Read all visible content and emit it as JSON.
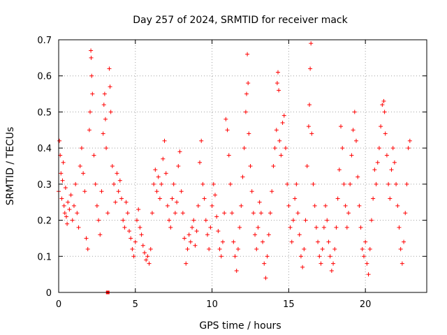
{
  "chart_data": {
    "type": "scatter",
    "title": "Day 257 of 2024, SRMTID for receiver mack",
    "xlabel": "GPS time / hours",
    "ylabel": "SRMTID / TECUs",
    "xlim": [
      0,
      24
    ],
    "ylim": [
      0,
      0.7
    ],
    "xticks": [
      0,
      5,
      10,
      15,
      20
    ],
    "xtick_labels": [
      "0",
      "5",
      "10",
      "15",
      "20"
    ],
    "yticks": [
      0,
      0.1,
      0.2,
      0.3,
      0.4,
      0.5,
      0.6,
      0.7
    ],
    "ytick_labels": [
      "0",
      "0.1",
      "0.2",
      "0.3",
      "0.4",
      "0.5",
      "0.6",
      "0.7"
    ],
    "grid": true,
    "marker": "+",
    "series": [
      {
        "name": "SRMTID",
        "color": "#ff0000",
        "points": [
          [
            0.0,
            0.28
          ],
          [
            0.05,
            0.42
          ],
          [
            0.1,
            0.38
          ],
          [
            0.15,
            0.33
          ],
          [
            0.2,
            0.26
          ],
          [
            0.25,
            0.31
          ],
          [
            0.3,
            0.36
          ],
          [
            0.35,
            0.24
          ],
          [
            0.4,
            0.22
          ],
          [
            0.45,
            0.29
          ],
          [
            0.5,
            0.21
          ],
          [
            0.55,
            0.19
          ],
          [
            0.6,
            0.25
          ],
          [
            0.7,
            0.23
          ],
          [
            0.8,
            0.27
          ],
          [
            0.9,
            0.2
          ],
          [
            1.0,
            0.24
          ],
          [
            1.1,
            0.3
          ],
          [
            1.2,
            0.22
          ],
          [
            1.3,
            0.18
          ],
          [
            1.4,
            0.35
          ],
          [
            1.5,
            0.4
          ],
          [
            1.6,
            0.33
          ],
          [
            1.7,
            0.28
          ],
          [
            1.8,
            0.15
          ],
          [
            1.9,
            0.12
          ],
          [
            2.0,
            0.45
          ],
          [
            2.05,
            0.5
          ],
          [
            2.1,
            0.67
          ],
          [
            2.12,
            0.65
          ],
          [
            2.15,
            0.6
          ],
          [
            2.2,
            0.55
          ],
          [
            2.3,
            0.38
          ],
          [
            2.4,
            0.3
          ],
          [
            2.5,
            0.24
          ],
          [
            2.6,
            0.2
          ],
          [
            2.7,
            0.16
          ],
          [
            2.8,
            0.28
          ],
          [
            2.9,
            0.44
          ],
          [
            2.95,
            0.52
          ],
          [
            3.0,
            0.55
          ],
          [
            3.05,
            0.48
          ],
          [
            3.1,
            0.4
          ],
          [
            3.2,
            0.22
          ],
          [
            3.3,
            0.62
          ],
          [
            3.35,
            0.57
          ],
          [
            3.4,
            0.5
          ],
          [
            3.5,
            0.35
          ],
          [
            3.6,
            0.3
          ],
          [
            3.7,
            0.25
          ],
          [
            3.8,
            0.33
          ],
          [
            3.9,
            0.28
          ],
          [
            4.0,
            0.31
          ],
          [
            4.1,
            0.26
          ],
          [
            4.2,
            0.2
          ],
          [
            4.3,
            0.18
          ],
          [
            4.4,
            0.25
          ],
          [
            4.5,
            0.22
          ],
          [
            4.6,
            0.17
          ],
          [
            4.7,
            0.15
          ],
          [
            4.8,
            0.12
          ],
          [
            4.9,
            0.1
          ],
          [
            5.0,
            0.14
          ],
          [
            5.1,
            0.2
          ],
          [
            5.2,
            0.23
          ],
          [
            5.3,
            0.18
          ],
          [
            5.4,
            0.16
          ],
          [
            5.5,
            0.13
          ],
          [
            5.6,
            0.11
          ],
          [
            5.7,
            0.09
          ],
          [
            5.8,
            0.1
          ],
          [
            5.9,
            0.08
          ],
          [
            6.0,
            0.12
          ],
          [
            6.1,
            0.22
          ],
          [
            6.2,
            0.3
          ],
          [
            6.3,
            0.34
          ],
          [
            6.4,
            0.28
          ],
          [
            6.5,
            0.32
          ],
          [
            6.6,
            0.26
          ],
          [
            6.7,
            0.3
          ],
          [
            6.8,
            0.37
          ],
          [
            6.9,
            0.42
          ],
          [
            7.0,
            0.33
          ],
          [
            7.1,
            0.24
          ],
          [
            7.2,
            0.2
          ],
          [
            7.3,
            0.18
          ],
          [
            7.4,
            0.26
          ],
          [
            7.5,
            0.3
          ],
          [
            7.6,
            0.22
          ],
          [
            7.7,
            0.25
          ],
          [
            7.8,
            0.35
          ],
          [
            7.9,
            0.39
          ],
          [
            8.0,
            0.28
          ],
          [
            8.1,
            0.22
          ],
          [
            8.2,
            0.15
          ],
          [
            8.3,
            0.08
          ],
          [
            8.4,
            0.12
          ],
          [
            8.5,
            0.16
          ],
          [
            8.6,
            0.14
          ],
          [
            8.7,
            0.18
          ],
          [
            8.8,
            0.2
          ],
          [
            8.9,
            0.13
          ],
          [
            9.0,
            0.17
          ],
          [
            9.1,
            0.24
          ],
          [
            9.2,
            0.36
          ],
          [
            9.3,
            0.42
          ],
          [
            9.4,
            0.3
          ],
          [
            9.5,
            0.26
          ],
          [
            9.6,
            0.2
          ],
          [
            9.7,
            0.16
          ],
          [
            9.8,
            0.12
          ],
          [
            9.9,
            0.18
          ],
          [
            10.0,
            0.24
          ],
          [
            10.1,
            0.3
          ],
          [
            10.2,
            0.27
          ],
          [
            10.3,
            0.21
          ],
          [
            10.4,
            0.17
          ],
          [
            10.5,
            0.12
          ],
          [
            10.6,
            0.1
          ],
          [
            10.7,
            0.14
          ],
          [
            10.8,
            0.22
          ],
          [
            10.9,
            0.48
          ],
          [
            11.0,
            0.45
          ],
          [
            11.1,
            0.38
          ],
          [
            11.2,
            0.3
          ],
          [
            11.3,
            0.22
          ],
          [
            11.4,
            0.14
          ],
          [
            11.5,
            0.1
          ],
          [
            11.6,
            0.06
          ],
          [
            11.7,
            0.12
          ],
          [
            11.8,
            0.18
          ],
          [
            11.9,
            0.24
          ],
          [
            12.0,
            0.32
          ],
          [
            12.1,
            0.4
          ],
          [
            12.2,
            0.5
          ],
          [
            12.25,
            0.55
          ],
          [
            12.3,
            0.66
          ],
          [
            12.35,
            0.58
          ],
          [
            12.4,
            0.44
          ],
          [
            12.5,
            0.35
          ],
          [
            12.6,
            0.28
          ],
          [
            12.7,
            0.22
          ],
          [
            12.8,
            0.16
          ],
          [
            12.9,
            0.12
          ],
          [
            13.0,
            0.18
          ],
          [
            13.1,
            0.25
          ],
          [
            13.2,
            0.22
          ],
          [
            13.3,
            0.14
          ],
          [
            13.4,
            0.08
          ],
          [
            13.5,
            0.04
          ],
          [
            13.6,
            0.1
          ],
          [
            13.7,
            0.16
          ],
          [
            13.8,
            0.22
          ],
          [
            13.9,
            0.28
          ],
          [
            14.0,
            0.35
          ],
          [
            14.1,
            0.4
          ],
          [
            14.2,
            0.45
          ],
          [
            14.25,
            0.58
          ],
          [
            14.3,
            0.61
          ],
          [
            14.35,
            0.56
          ],
          [
            14.4,
            0.42
          ],
          [
            14.5,
            0.38
          ],
          [
            14.6,
            0.47
          ],
          [
            14.7,
            0.49
          ],
          [
            14.8,
            0.4
          ],
          [
            14.9,
            0.3
          ],
          [
            15.0,
            0.24
          ],
          [
            15.1,
            0.18
          ],
          [
            15.2,
            0.14
          ],
          [
            15.3,
            0.2
          ],
          [
            15.4,
            0.26
          ],
          [
            15.5,
            0.3
          ],
          [
            15.6,
            0.22
          ],
          [
            15.7,
            0.16
          ],
          [
            15.8,
            0.1
          ],
          [
            15.9,
            0.07
          ],
          [
            16.0,
            0.12
          ],
          [
            16.1,
            0.2
          ],
          [
            16.2,
            0.35
          ],
          [
            16.3,
            0.46
          ],
          [
            16.35,
            0.52
          ],
          [
            16.4,
            0.62
          ],
          [
            16.45,
            0.69
          ],
          [
            16.5,
            0.44
          ],
          [
            16.6,
            0.3
          ],
          [
            16.7,
            0.24
          ],
          [
            16.8,
            0.18
          ],
          [
            16.9,
            0.14
          ],
          [
            17.0,
            0.1
          ],
          [
            17.1,
            0.08
          ],
          [
            17.2,
            0.12
          ],
          [
            17.3,
            0.18
          ],
          [
            17.4,
            0.24
          ],
          [
            17.5,
            0.2
          ],
          [
            17.6,
            0.14
          ],
          [
            17.7,
            0.1
          ],
          [
            17.8,
            0.06
          ],
          [
            17.9,
            0.08
          ],
          [
            18.0,
            0.12
          ],
          [
            18.1,
            0.18
          ],
          [
            18.2,
            0.26
          ],
          [
            18.3,
            0.34
          ],
          [
            18.4,
            0.46
          ],
          [
            18.5,
            0.4
          ],
          [
            18.6,
            0.3
          ],
          [
            18.7,
            0.24
          ],
          [
            18.8,
            0.18
          ],
          [
            18.9,
            0.22
          ],
          [
            19.0,
            0.3
          ],
          [
            19.1,
            0.38
          ],
          [
            19.2,
            0.45
          ],
          [
            19.3,
            0.5
          ],
          [
            19.4,
            0.42
          ],
          [
            19.5,
            0.32
          ],
          [
            19.6,
            0.24
          ],
          [
            19.7,
            0.18
          ],
          [
            19.8,
            0.12
          ],
          [
            19.9,
            0.1
          ],
          [
            20.0,
            0.14
          ],
          [
            20.1,
            0.08
          ],
          [
            20.2,
            0.05
          ],
          [
            20.3,
            0.12
          ],
          [
            20.4,
            0.2
          ],
          [
            20.5,
            0.26
          ],
          [
            20.6,
            0.34
          ],
          [
            20.7,
            0.3
          ],
          [
            20.8,
            0.36
          ],
          [
            20.9,
            0.4
          ],
          [
            21.0,
            0.46
          ],
          [
            21.1,
            0.52
          ],
          [
            21.2,
            0.53
          ],
          [
            21.25,
            0.5
          ],
          [
            21.3,
            0.44
          ],
          [
            21.4,
            0.38
          ],
          [
            21.5,
            0.3
          ],
          [
            21.6,
            0.26
          ],
          [
            21.7,
            0.34
          ],
          [
            21.8,
            0.4
          ],
          [
            21.9,
            0.36
          ],
          [
            22.0,
            0.3
          ],
          [
            22.1,
            0.24
          ],
          [
            22.2,
            0.18
          ],
          [
            22.3,
            0.12
          ],
          [
            22.4,
            0.08
          ],
          [
            22.5,
            0.14
          ],
          [
            22.6,
            0.22
          ],
          [
            22.7,
            0.3
          ],
          [
            22.8,
            0.4
          ],
          [
            22.9,
            0.42
          ]
        ]
      }
    ],
    "outlier_markers": [
      {
        "x": 3.2,
        "y": 0.0,
        "shape": "square"
      }
    ]
  }
}
